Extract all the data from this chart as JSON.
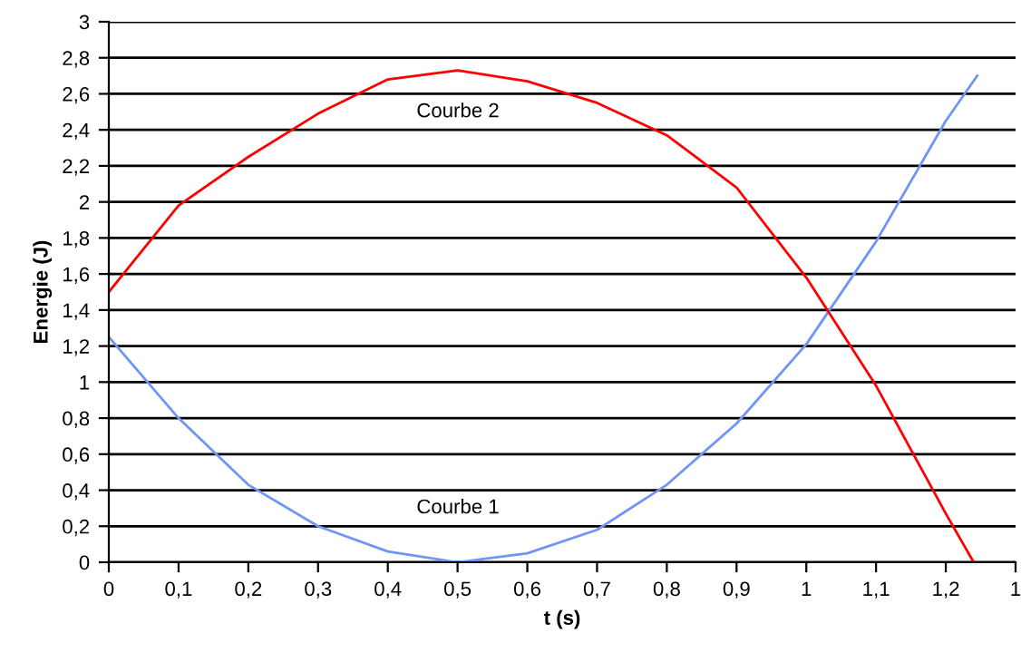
{
  "chart_data": {
    "type": "line",
    "xlabel": "t (s)",
    "ylabel": "Energie (J)",
    "series": [
      {
        "color": "#6f95f5",
        "x": [
          0,
          0.1,
          0.2,
          0.3,
          0.4,
          0.5,
          0.6,
          0.7,
          0.8,
          0.9,
          1.0,
          1.1,
          1.2,
          1.245
        ],
        "values": [
          1.25,
          0.8,
          0.43,
          0.2,
          0.06,
          0,
          0.05,
          0.18,
          0.43,
          0.77,
          1.21,
          1.78,
          2.45,
          2.7
        ]
      },
      {
        "color": "#ff0000",
        "x": [
          0,
          0.1,
          0.2,
          0.3,
          0.4,
          0.5,
          0.6,
          0.7,
          0.8,
          0.9,
          1.0,
          1.1,
          1.2,
          1.24
        ],
        "values": [
          1.5,
          1.98,
          2.25,
          2.49,
          2.68,
          2.73,
          2.67,
          2.55,
          2.37,
          2.08,
          1.58,
          0.98,
          0.27,
          0
        ]
      }
    ],
    "annotations": [
      "Courbe 2",
      "Courbe 1"
    ],
    "xlim": [
      0,
      1.3
    ],
    "ylim": [
      0,
      3
    ],
    "xticks": [
      {
        "value": 0,
        "label": "0"
      },
      {
        "value": 0.1,
        "label": "0,1"
      },
      {
        "value": 0.2,
        "label": "0,2"
      },
      {
        "value": 0.3,
        "label": "0,3"
      },
      {
        "value": 0.4,
        "label": "0,4"
      },
      {
        "value": 0.5,
        "label": "0,5"
      },
      {
        "value": 0.6,
        "label": "0,6"
      },
      {
        "value": 0.7,
        "label": "0,7"
      },
      {
        "value": 0.8,
        "label": "0,8"
      },
      {
        "value": 0.9,
        "label": "0,9"
      },
      {
        "value": 1,
        "label": "1"
      },
      {
        "value": 1.1,
        "label": "1,1"
      },
      {
        "value": 1.2,
        "label": "1,2"
      },
      {
        "value": 1.3,
        "label": "1"
      }
    ],
    "yticks": [
      {
        "value": 0,
        "label": "0"
      },
      {
        "value": 0.2,
        "label": "0,2"
      },
      {
        "value": 0.4,
        "label": "0,4"
      },
      {
        "value": 0.6,
        "label": "0,6"
      },
      {
        "value": 0.8,
        "label": "0,8"
      },
      {
        "value": 1,
        "label": "1"
      },
      {
        "value": 1.2,
        "label": "1,2"
      },
      {
        "value": 1.4,
        "label": "1,4"
      },
      {
        "value": 1.6,
        "label": "1,6"
      },
      {
        "value": 1.8,
        "label": "1,8"
      },
      {
        "value": 2,
        "label": "2"
      },
      {
        "value": 2.2,
        "label": "2,2"
      },
      {
        "value": 2.4,
        "label": "2,4"
      },
      {
        "value": 2.6,
        "label": "2,6"
      },
      {
        "value": 2.8,
        "label": "2,8"
      },
      {
        "value": 3,
        "label": "3"
      }
    ],
    "grid": "y",
    "legend": false,
    "line_style": "solid",
    "marker": "none"
  }
}
